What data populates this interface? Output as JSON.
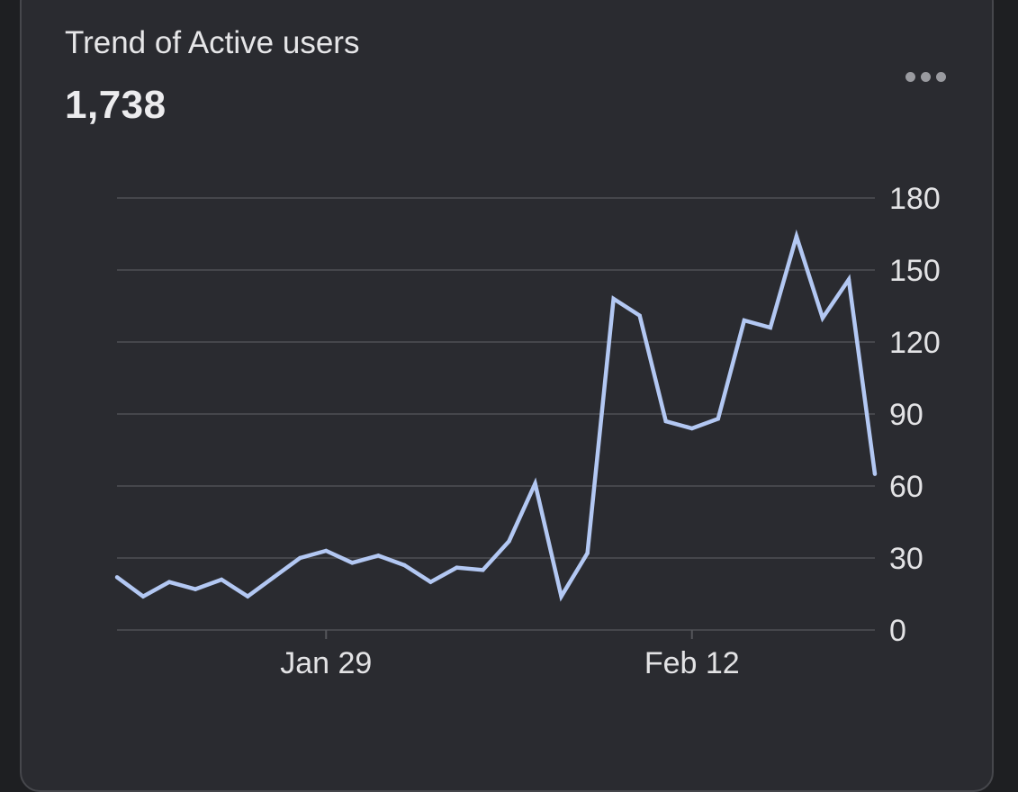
{
  "card": {
    "title": "Trend of Active users",
    "total": "1,738",
    "menu_icon": "more-horizontal-icon"
  },
  "chart_data": {
    "type": "line",
    "title": "",
    "xlabel": "",
    "ylabel": "",
    "x": [
      "Jan 21",
      "Jan 22",
      "Jan 23",
      "Jan 24",
      "Jan 25",
      "Jan 26",
      "Jan 27",
      "Jan 28",
      "Jan 29",
      "Jan 30",
      "Jan 31",
      "Feb 1",
      "Feb 2",
      "Feb 3",
      "Feb 4",
      "Feb 5",
      "Feb 6",
      "Feb 7",
      "Feb 8",
      "Feb 9",
      "Feb 10",
      "Feb 11",
      "Feb 12",
      "Feb 13",
      "Feb 14",
      "Feb 15",
      "Feb 16",
      "Feb 17",
      "Feb 18",
      "Feb 19"
    ],
    "series": [
      {
        "values": [
          22,
          14,
          20,
          17,
          21,
          14,
          22,
          30,
          33,
          28,
          31,
          27,
          20,
          26,
          25,
          37,
          61,
          14,
          32,
          138,
          131,
          87,
          84,
          88,
          129,
          126,
          164,
          130,
          146,
          65
        ],
        "color": "#b3c8f3"
      }
    ],
    "ylim": [
      0,
      180
    ],
    "yticks": [
      "0",
      "30",
      "60",
      "90",
      "120",
      "150",
      "180"
    ],
    "xticks": [
      {
        "label": "Jan 29",
        "index": 8
      },
      {
        "label": "Feb 12",
        "index": 22
      }
    ],
    "y_axis_position": "right",
    "grid": true
  }
}
